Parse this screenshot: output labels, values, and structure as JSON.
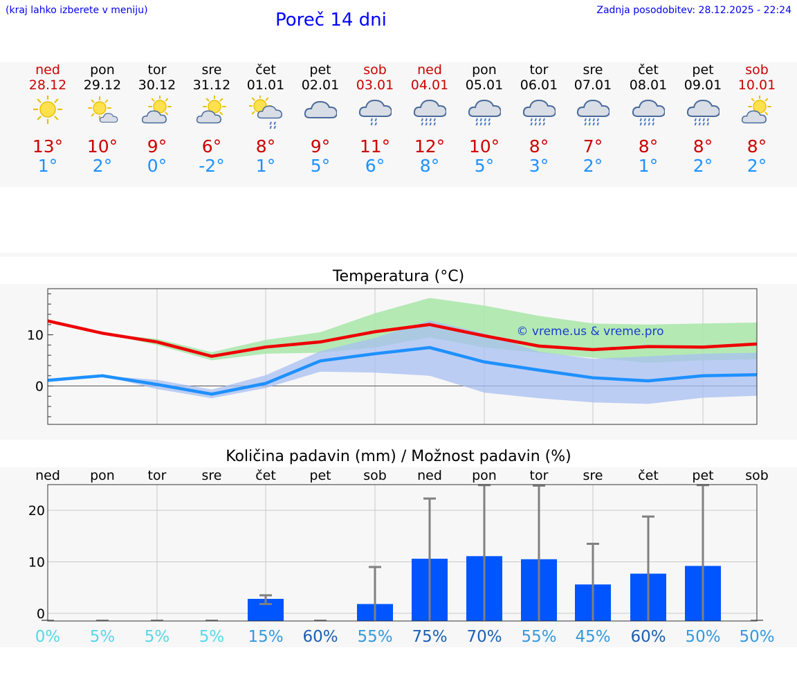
{
  "header": {
    "hint": "(kraj lahko izberete v meniju)",
    "title": "Poreč 14 dni",
    "updated": "Zadnja posodobitev: 28.12.2025 - 22:24"
  },
  "days": [
    {
      "name": "ned",
      "date": "28.12",
      "weekend": true,
      "icon": "sun-icon",
      "max": "13°",
      "min": "1°"
    },
    {
      "name": "pon",
      "date": "29.12",
      "weekend": false,
      "icon": "sun-small-cloud-icon",
      "max": "10°",
      "min": "2°"
    },
    {
      "name": "tor",
      "date": "30.12",
      "weekend": false,
      "icon": "partly-cloudy-icon",
      "max": "9°",
      "min": "0°"
    },
    {
      "name": "sre",
      "date": "31.12",
      "weekend": false,
      "icon": "partly-cloudy-icon",
      "max": "6°",
      "min": "-2°"
    },
    {
      "name": "čet",
      "date": "01.01",
      "weekend": false,
      "icon": "sun-cloud-rain-icon",
      "max": "8°",
      "min": "1°"
    },
    {
      "name": "pet",
      "date": "02.01",
      "weekend": false,
      "icon": "cloudy-icon",
      "max": "9°",
      "min": "5°"
    },
    {
      "name": "sob",
      "date": "03.01",
      "weekend": true,
      "icon": "cloud-light-rain-icon",
      "max": "11°",
      "min": "6°"
    },
    {
      "name": "ned",
      "date": "04.01",
      "weekend": true,
      "icon": "cloud-rain-icon",
      "max": "12°",
      "min": "8°"
    },
    {
      "name": "pon",
      "date": "05.01",
      "weekend": false,
      "icon": "cloud-rain-icon",
      "max": "10°",
      "min": "5°"
    },
    {
      "name": "tor",
      "date": "06.01",
      "weekend": false,
      "icon": "cloud-rain-icon",
      "max": "8°",
      "min": "3°"
    },
    {
      "name": "sre",
      "date": "07.01",
      "weekend": false,
      "icon": "cloud-rain-icon",
      "max": "7°",
      "min": "2°"
    },
    {
      "name": "čet",
      "date": "08.01",
      "weekend": false,
      "icon": "cloud-rain-icon",
      "max": "8°",
      "min": "1°"
    },
    {
      "name": "pet",
      "date": "09.01",
      "weekend": false,
      "icon": "cloud-rain-icon",
      "max": "8°",
      "min": "2°"
    },
    {
      "name": "sob",
      "date": "10.01",
      "weekend": true,
      "icon": "partly-cloudy-icon",
      "max": "8°",
      "min": "2°"
    }
  ],
  "colors": {
    "max_line": "#ee0000",
    "min_line": "#1e90ff",
    "max_band": "#a8e6a8",
    "min_band": "#a8bff2",
    "bar": "#0055ff",
    "error": "#808080",
    "weekend": "#cc0000",
    "prob_low": "#55d8e8",
    "prob_mid": "#3399dd",
    "prob_high": "#1a5fb4"
  },
  "chart_data": [
    {
      "type": "line",
      "title": "Temperatura (°C)",
      "watermark": "© vreme.us & vreme.pro",
      "ylim": [
        -7.5,
        19
      ],
      "yticks": [
        "10",
        "0"
      ],
      "yticks_values": [
        10,
        0
      ],
      "series": [
        {
          "name": "max",
          "values": [
            12.7,
            10.3,
            8.6,
            5.8,
            7.6,
            8.6,
            10.6,
            12.0,
            9.8,
            7.8,
            7.1,
            7.7,
            7.6,
            8.2
          ]
        },
        {
          "name": "min",
          "values": [
            1.1,
            2.0,
            0.3,
            -1.6,
            0.5,
            4.9,
            6.3,
            7.5,
            4.7,
            3.1,
            1.6,
            1.0,
            2.0,
            2.2
          ]
        }
      ],
      "bands": [
        {
          "name": "max-range",
          "lower": [
            12.7,
            10.3,
            8.0,
            5.0,
            6.3,
            6.5,
            7.5,
            9.5,
            7.5,
            6.5,
            5.5,
            4.5,
            5.0,
            5.2
          ],
          "upper": [
            12.7,
            10.3,
            9.2,
            6.6,
            9.0,
            10.5,
            14.2,
            17.2,
            15.7,
            13.7,
            12.2,
            12.0,
            12.2,
            12.4
          ]
        },
        {
          "name": "min-range",
          "lower": [
            1.1,
            2.0,
            -0.6,
            -2.4,
            -0.4,
            2.8,
            2.6,
            2.0,
            -1.3,
            -2.4,
            -3.2,
            -3.5,
            -2.3,
            -1.9
          ],
          "upper": [
            1.1,
            2.0,
            1.2,
            -0.7,
            2.1,
            6.8,
            9.4,
            12.8,
            10.3,
            6.7,
            5.3,
            5.8,
            6.3,
            6.5
          ]
        }
      ]
    },
    {
      "type": "bar",
      "title": "Količina padavin (mm) / Možnost padavin (%)",
      "categories": [
        "ned",
        "pon",
        "tor",
        "sre",
        "čet",
        "pet",
        "sob",
        "ned",
        "pon",
        "tor",
        "sre",
        "čet",
        "pet",
        "sob"
      ],
      "ylim": [
        -1.5,
        25
      ],
      "yticks": [
        "20",
        "10",
        "0"
      ],
      "yticks_values": [
        20,
        10,
        0
      ],
      "values": [
        0,
        0,
        0,
        0,
        2.8,
        0,
        1.8,
        10.6,
        11.1,
        10.5,
        5.6,
        7.7,
        9.2,
        0
      ],
      "error_high": [
        0,
        0,
        0,
        0,
        3.5,
        0,
        9.0,
        22.3,
        24.9,
        24.8,
        13.5,
        18.8,
        24.9,
        0
      ],
      "error_low": [
        0,
        0,
        0,
        0,
        1.8,
        0,
        0,
        0,
        0,
        0,
        0,
        0,
        0,
        0
      ],
      "probability": [
        "0%",
        "5%",
        "5%",
        "5%",
        "15%",
        "60%",
        "55%",
        "75%",
        "70%",
        "55%",
        "45%",
        "60%",
        "50%",
        "50%"
      ],
      "probability_values": [
        0,
        5,
        5,
        5,
        15,
        60,
        55,
        75,
        70,
        55,
        45,
        60,
        50,
        50
      ]
    }
  ]
}
